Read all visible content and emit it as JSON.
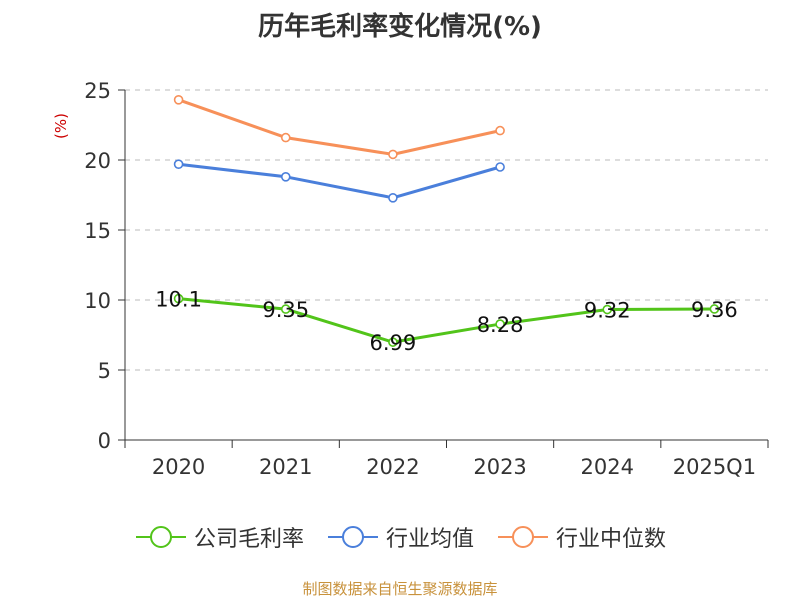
{
  "chart_data": {
    "type": "line",
    "title": "历年毛利率变化情况(%)",
    "ylabel": "(%)",
    "xlabel": "",
    "categories": [
      "2020",
      "2021",
      "2022",
      "2023",
      "2024",
      "2025Q1"
    ],
    "ylim": [
      0,
      25
    ],
    "yticks": [
      0,
      5,
      10,
      15,
      20,
      25
    ],
    "grid": true,
    "legend_position": "bottom",
    "series": [
      {
        "name": "公司毛利率",
        "color": "#52c41a",
        "values": [
          10.1,
          9.35,
          6.99,
          8.28,
          9.32,
          9.36
        ],
        "labels": [
          "10.1",
          "9.35",
          "6.99",
          "8.28",
          "9.32",
          "9.36"
        ]
      },
      {
        "name": "行业均值",
        "color": "#4a7fdb",
        "values": [
          19.7,
          18.8,
          17.3,
          19.5,
          null,
          null
        ]
      },
      {
        "name": "行业中位数",
        "color": "#f79059",
        "values": [
          24.3,
          21.6,
          20.4,
          22.1,
          null,
          null
        ]
      }
    ]
  },
  "footer": "制图数据来自恒生聚源数据库",
  "ylabel_color": "#cc0000"
}
